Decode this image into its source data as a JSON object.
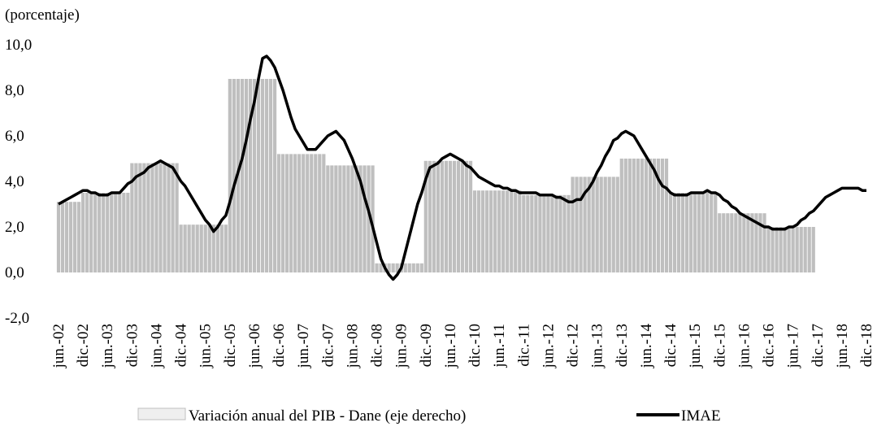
{
  "chart_data": {
    "type": "bar",
    "y_label": "(porcentaje)",
    "categories": [
      "jun.-02",
      null,
      null,
      null,
      null,
      null,
      "dic.-02",
      null,
      null,
      null,
      null,
      null,
      "jun.-03",
      null,
      null,
      null,
      null,
      null,
      "dic.-03",
      null,
      null,
      null,
      null,
      null,
      "jun.-04",
      null,
      null,
      null,
      null,
      null,
      "dic.-04",
      null,
      null,
      null,
      null,
      null,
      "jun.-05",
      null,
      null,
      null,
      null,
      null,
      "dic.-05",
      null,
      null,
      null,
      null,
      null,
      "jun.-06",
      null,
      null,
      null,
      null,
      null,
      "dic.-06",
      null,
      null,
      null,
      null,
      null,
      "jun.-07",
      null,
      null,
      null,
      null,
      null,
      "dic.-07",
      null,
      null,
      null,
      null,
      null,
      "jun.-08",
      null,
      null,
      null,
      null,
      null,
      "dic.-08",
      null,
      null,
      null,
      null,
      null,
      "jun.-09",
      null,
      null,
      null,
      null,
      null,
      "dic.-09",
      null,
      null,
      null,
      null,
      null,
      "jun.-10",
      null,
      null,
      null,
      null,
      null,
      "dic.-10",
      null,
      null,
      null,
      null,
      null,
      "jun.-11",
      null,
      null,
      null,
      null,
      null,
      "dic.-11",
      null,
      null,
      null,
      null,
      null,
      "jun.-12",
      null,
      null,
      null,
      null,
      null,
      "dic.-12",
      null,
      null,
      null,
      null,
      null,
      "jun.-13",
      null,
      null,
      null,
      null,
      null,
      "dic.-13",
      null,
      null,
      null,
      null,
      null,
      "jun.-14",
      null,
      null,
      null,
      null,
      null,
      "dic.-14",
      null,
      null,
      null,
      null,
      null,
      "jun.-15",
      null,
      null,
      null,
      null,
      null,
      "dic.-15",
      null,
      null,
      null,
      null,
      null,
      "jun.-16",
      null,
      null,
      null,
      null,
      null,
      "dic.-16",
      null,
      null,
      null,
      null,
      null,
      "jun.-17",
      null,
      null,
      null,
      null,
      null,
      "dic.-17",
      null,
      null,
      null,
      null,
      null,
      "jun.-18",
      null,
      null,
      null,
      null,
      null,
      "dic.-18"
    ],
    "series": [
      {
        "name": "Variación anual del PIB - Dane (eje derecho)",
        "type": "bar",
        "color": "#bfbfbf",
        "values": [
          3.1,
          3.1,
          3.1,
          3.1,
          3.1,
          3.1,
          3.5,
          3.5,
          3.5,
          3.5,
          3.5,
          3.5,
          3.5,
          3.5,
          3.5,
          3.5,
          3.5,
          3.5,
          4.8,
          4.8,
          4.8,
          4.8,
          4.8,
          4.8,
          4.8,
          4.8,
          4.8,
          4.8,
          4.8,
          4.8,
          2.1,
          2.1,
          2.1,
          2.1,
          2.1,
          2.1,
          2.1,
          2.1,
          2.1,
          2.1,
          2.1,
          2.1,
          8.5,
          8.5,
          8.5,
          8.5,
          8.5,
          8.5,
          8.5,
          8.5,
          8.5,
          8.5,
          8.5,
          8.5,
          5.2,
          5.2,
          5.2,
          5.2,
          5.2,
          5.2,
          5.2,
          5.2,
          5.2,
          5.2,
          5.2,
          5.2,
          4.7,
          4.7,
          4.7,
          4.7,
          4.7,
          4.7,
          4.7,
          4.7,
          4.7,
          4.7,
          4.7,
          4.7,
          0.4,
          0.4,
          0.4,
          0.4,
          0.4,
          0.4,
          0.4,
          0.4,
          0.4,
          0.4,
          0.4,
          0.4,
          4.9,
          4.9,
          4.9,
          4.9,
          4.9,
          4.9,
          4.9,
          4.9,
          4.9,
          4.9,
          4.9,
          4.9,
          3.6,
          3.6,
          3.6,
          3.6,
          3.6,
          3.6,
          3.6,
          3.6,
          3.6,
          3.6,
          3.6,
          3.6,
          3.4,
          3.4,
          3.4,
          3.4,
          3.4,
          3.4,
          3.4,
          3.4,
          3.4,
          3.4,
          3.4,
          3.4,
          4.2,
          4.2,
          4.2,
          4.2,
          4.2,
          4.2,
          4.2,
          4.2,
          4.2,
          4.2,
          4.2,
          4.2,
          5.0,
          5.0,
          5.0,
          5.0,
          5.0,
          5.0,
          5.0,
          5.0,
          5.0,
          5.0,
          5.0,
          5.0,
          3.5,
          3.5,
          3.5,
          3.5,
          3.5,
          3.5,
          3.5,
          3.5,
          3.5,
          3.5,
          3.5,
          3.5,
          2.6,
          2.6,
          2.6,
          2.6,
          2.6,
          2.6,
          2.6,
          2.6,
          2.6,
          2.6,
          2.6,
          2.6,
          2.0,
          2.0,
          2.0,
          2.0,
          2.0,
          2.0,
          2.0,
          2.0,
          2.0,
          2.0,
          2.0,
          2.0,
          null,
          null,
          null,
          null,
          null,
          null,
          null,
          null,
          null,
          null,
          null,
          null,
          null
        ]
      },
      {
        "name": "IMAE",
        "type": "line",
        "color": "#000000",
        "values": [
          3.0,
          3.1,
          3.2,
          3.3,
          3.4,
          3.5,
          3.6,
          3.6,
          3.5,
          3.5,
          3.4,
          3.4,
          3.4,
          3.5,
          3.5,
          3.5,
          3.7,
          3.9,
          4.0,
          4.2,
          4.3,
          4.4,
          4.6,
          4.7,
          4.8,
          4.9,
          4.8,
          4.7,
          4.6,
          4.3,
          4.0,
          3.8,
          3.5,
          3.2,
          2.9,
          2.6,
          2.3,
          2.1,
          1.8,
          2.0,
          2.3,
          2.5,
          3.1,
          3.8,
          4.4,
          5.0,
          5.8,
          6.7,
          7.5,
          8.5,
          9.4,
          9.5,
          9.3,
          9.0,
          8.5,
          8.0,
          7.4,
          6.8,
          6.3,
          6.0,
          5.7,
          5.4,
          5.4,
          5.4,
          5.6,
          5.8,
          6.0,
          6.1,
          6.2,
          6.0,
          5.8,
          5.4,
          5.0,
          4.5,
          4.0,
          3.3,
          2.7,
          2.0,
          1.3,
          0.6,
          0.2,
          -0.1,
          -0.3,
          -0.1,
          0.2,
          0.9,
          1.6,
          2.3,
          3.0,
          3.5,
          4.1,
          4.6,
          4.7,
          4.8,
          5.0,
          5.1,
          5.2,
          5.1,
          5.0,
          4.9,
          4.7,
          4.6,
          4.4,
          4.2,
          4.1,
          4.0,
          3.9,
          3.8,
          3.8,
          3.7,
          3.7,
          3.6,
          3.6,
          3.5,
          3.5,
          3.5,
          3.5,
          3.5,
          3.4,
          3.4,
          3.4,
          3.4,
          3.3,
          3.3,
          3.2,
          3.1,
          3.1,
          3.2,
          3.2,
          3.5,
          3.7,
          4.0,
          4.4,
          4.7,
          5.1,
          5.4,
          5.8,
          5.9,
          6.1,
          6.2,
          6.1,
          6.0,
          5.7,
          5.4,
          5.1,
          4.8,
          4.5,
          4.1,
          3.8,
          3.7,
          3.5,
          3.4,
          3.4,
          3.4,
          3.4,
          3.5,
          3.5,
          3.5,
          3.5,
          3.6,
          3.5,
          3.5,
          3.4,
          3.2,
          3.1,
          2.9,
          2.8,
          2.6,
          2.5,
          2.4,
          2.3,
          2.2,
          2.1,
          2.0,
          2.0,
          1.9,
          1.9,
          1.9,
          1.9,
          2.0,
          2.0,
          2.1,
          2.3,
          2.4,
          2.6,
          2.7,
          2.9,
          3.1,
          3.3,
          3.4,
          3.5,
          3.6,
          3.7,
          3.7,
          3.7,
          3.7,
          3.7,
          3.6,
          3.6
        ]
      }
    ],
    "ylim": [
      -2,
      10
    ],
    "yticks": [
      {
        "value": -2,
        "label": "-2,0"
      },
      {
        "value": 0,
        "label": "0,0"
      },
      {
        "value": 2,
        "label": "2,0"
      },
      {
        "value": 4,
        "label": "4,0"
      },
      {
        "value": 6,
        "label": "6,0"
      },
      {
        "value": 8,
        "label": "8,0"
      },
      {
        "value": 10,
        "label": "10,0"
      }
    ],
    "grid": false,
    "legend": "bottom"
  }
}
